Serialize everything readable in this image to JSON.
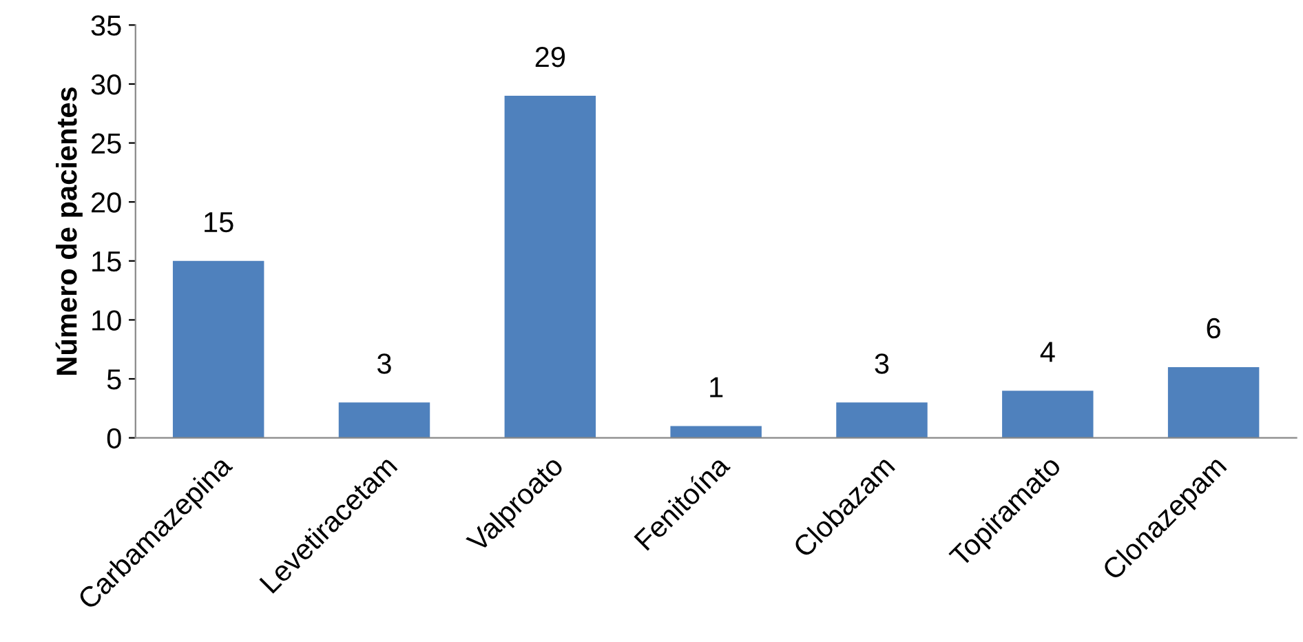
{
  "chart_data": {
    "type": "bar",
    "ylabel": "Número de pacientes",
    "categories": [
      "Carbamazepina",
      "Levetiracetam",
      "Valproato",
      "Fenitoína",
      "Clobazam",
      "Topiramato",
      "Clonazepam"
    ],
    "values": [
      15,
      3,
      29,
      1,
      3,
      4,
      6
    ],
    "color": "#4f81bd",
    "ylim": [
      0,
      35
    ],
    "yticks": [
      0,
      5,
      10,
      15,
      20,
      25,
      30,
      35
    ],
    "grid": false,
    "data_labels": true
  }
}
